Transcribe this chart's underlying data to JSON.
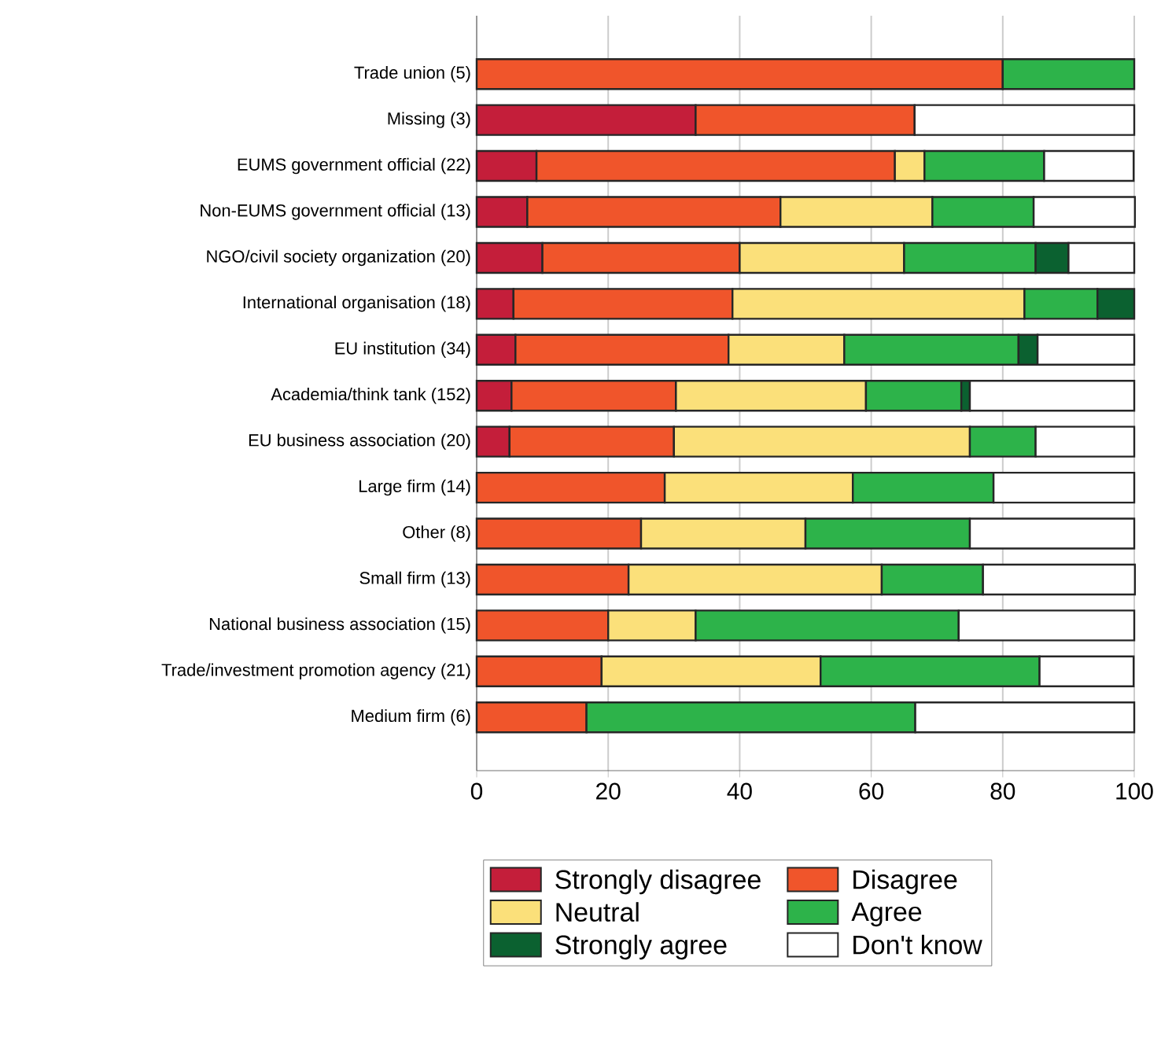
{
  "chart_data": {
    "type": "bar",
    "orientation": "horizontal",
    "stacked": true,
    "categories": [
      "Trade union (5)",
      "Missing (3)",
      "EUMS government official (22)",
      "Non-EUMS government official (13)",
      "NGO/civil society organization (20)",
      "International organisation (18)",
      "EU institution (34)",
      "Academia/think tank (152)",
      "EU business association (20)",
      "Large firm (14)",
      "Other (8)",
      "Small firm (13)",
      "National business association (15)",
      "Trade/investment promotion agency (21)",
      "Medium firm (6)"
    ],
    "series": [
      {
        "name": "Strongly disagree",
        "color": "#c41e3a",
        "values": [
          null,
          33.3,
          9.1,
          7.7,
          10,
          5.6,
          5.9,
          5.3,
          5,
          null,
          null,
          null,
          null,
          null,
          null
        ]
      },
      {
        "name": "Disagree",
        "color": "#f0552b",
        "values": [
          80,
          33.3,
          54.5,
          38.5,
          30,
          33.3,
          32.4,
          25,
          25,
          28.6,
          25,
          23.1,
          20,
          19,
          16.7
        ]
      },
      {
        "name": "Neutral",
        "color": "#fbe07a",
        "values": [
          null,
          null,
          4.5,
          23.1,
          25,
          44.4,
          17.6,
          28.9,
          45,
          28.6,
          25,
          38.5,
          13.3,
          33.3,
          null
        ]
      },
      {
        "name": "Agree",
        "color": "#2db34a",
        "values": [
          20,
          null,
          18.2,
          15.4,
          20,
          11.1,
          26.5,
          14.5,
          10,
          21.4,
          25,
          15.4,
          40,
          33.3,
          50
        ]
      },
      {
        "name": "Strongly agree",
        "color": "#0b6130",
        "values": [
          null,
          null,
          null,
          null,
          5,
          5.6,
          2.9,
          1.3,
          null,
          null,
          null,
          null,
          null,
          null,
          null
        ]
      },
      {
        "name": "Don't know",
        "color": "#ffffff",
        "values": [
          null,
          33.4,
          13.6,
          15.4,
          10,
          null,
          14.7,
          25,
          15,
          21.4,
          25,
          23.1,
          26.7,
          14.3,
          33.3
        ]
      }
    ],
    "xlim": [
      0,
      100
    ],
    "xticks": [
      0,
      20,
      40,
      60,
      80,
      100
    ],
    "grid": "x",
    "legend": "bottom"
  }
}
